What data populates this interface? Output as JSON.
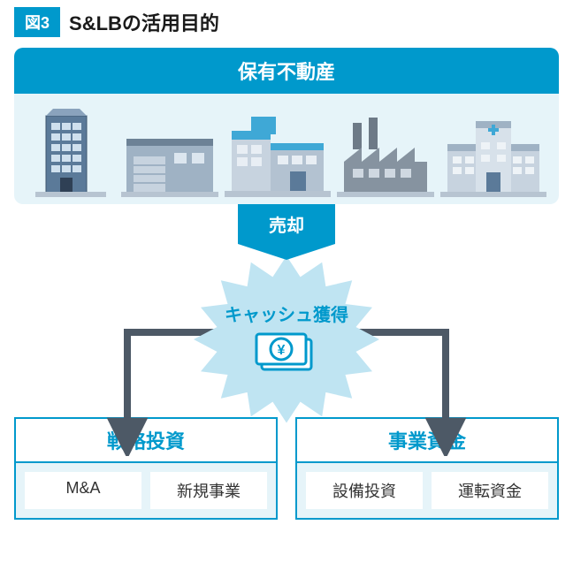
{
  "figure": {
    "badge": "図3",
    "title": "S&LBの活用目的"
  },
  "top_box": {
    "header": "保有不動産",
    "header_bg": "#0099cc",
    "body_bg": "#e6f4f9",
    "buildings": [
      "office-tower",
      "warehouse",
      "factory-blue",
      "factory-grey",
      "hospital"
    ]
  },
  "sell": {
    "label": "売却",
    "bg": "#0099cc"
  },
  "burst": {
    "text": "キャッシュ獲得",
    "text_color": "#0099cc",
    "fill": "#bfe4f2",
    "points": 16,
    "outer_r": 105,
    "inner_r": 80
  },
  "yen_icon": {
    "stroke": "#0099cc",
    "fill": "#ffffff",
    "glyph": "¥"
  },
  "arrows": {
    "color": "#4d5966",
    "stroke_width": 8,
    "spread": 210,
    "drop": 130
  },
  "bottom": {
    "left": {
      "header": "戦略投資",
      "chips": [
        "M&A",
        "新規事業"
      ]
    },
    "right": {
      "header": "事業資金",
      "chips": [
        "設備投資",
        "運転資金"
      ]
    },
    "border_color": "#0099cc",
    "bg": "#e6f4f9",
    "chip_bg": "#ffffff"
  }
}
